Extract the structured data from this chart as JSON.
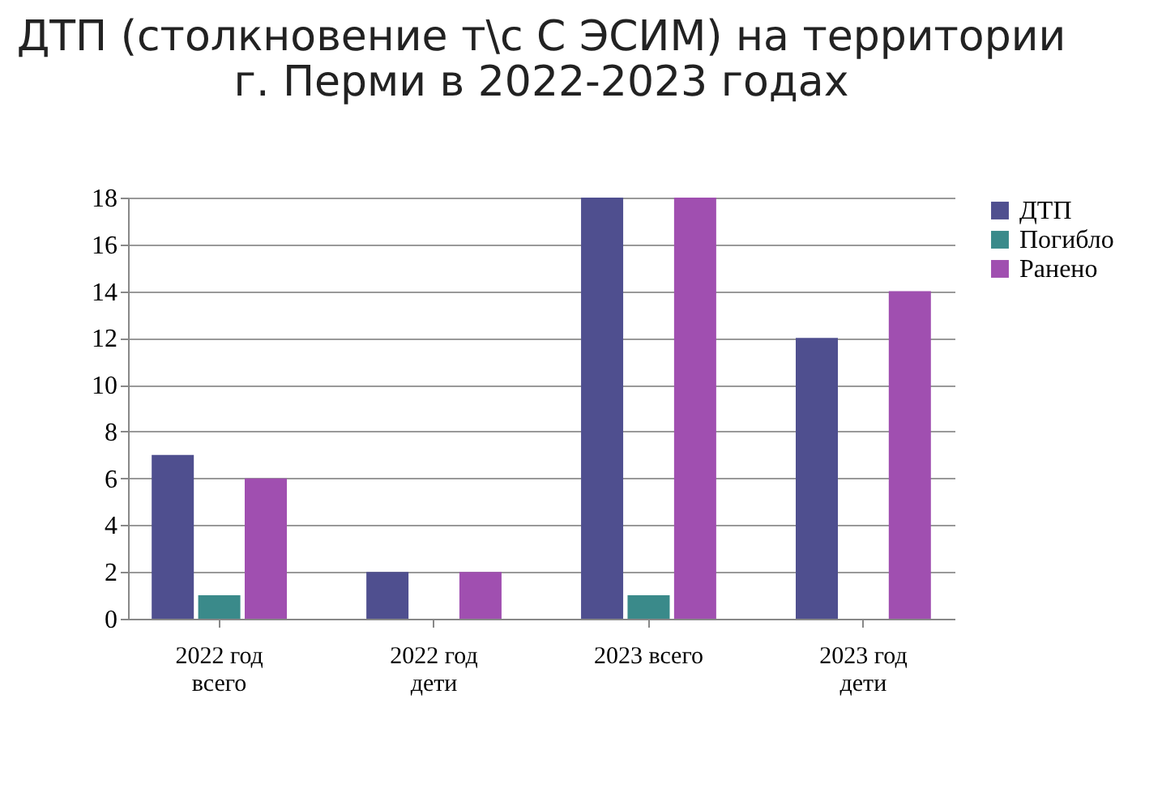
{
  "chart_data": {
    "type": "bar",
    "title": "ДТП (столкновение т\\с С ЭСИМ) на территории\nг. Перми в 2022-2023 годах",
    "categories": [
      "2022 год\nвсего",
      "2022 год\nдети",
      "2023 всего",
      "2023 год\nдети"
    ],
    "series": [
      {
        "name": "ДТП",
        "color": "#4f4f8f",
        "values": [
          7,
          2,
          18,
          12
        ]
      },
      {
        "name": "Погибло",
        "color": "#3a8a8a",
        "values": [
          1,
          0,
          1,
          0
        ]
      },
      {
        "name": "Ранено",
        "color": "#a04fb0",
        "values": [
          6,
          2,
          18,
          14
        ]
      }
    ],
    "ylim": [
      0,
      18
    ],
    "yticks": [
      0,
      2,
      4,
      6,
      8,
      10,
      12,
      14,
      16,
      18
    ],
    "grid": "y",
    "legend": "right"
  }
}
